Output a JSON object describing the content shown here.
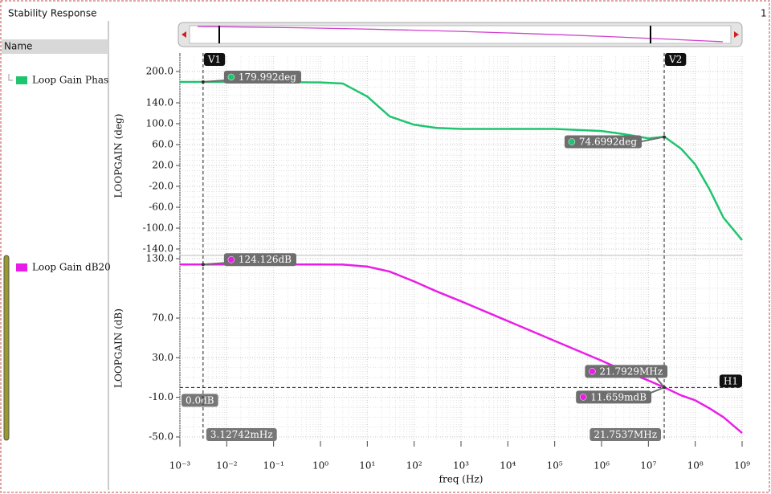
{
  "window": {
    "title": "Stability Response",
    "number": "1"
  },
  "browser": {
    "header": "Name"
  },
  "chart_data": [
    {
      "type": "line",
      "y_label": "LOOPGAIN (deg)",
      "log_x": true,
      "grid": true,
      "xlim": [
        0.001,
        1000000000
      ],
      "xticks": [
        0.001,
        0.01,
        0.1,
        1,
        10,
        100,
        1000,
        10000,
        100000,
        1000000,
        10000000,
        100000000,
        1000000000
      ],
      "ylim": [
        -140,
        200
      ],
      "yticks": [
        {
          "value": 200,
          "label": "200.0"
        },
        {
          "value": 140,
          "label": "140.0"
        },
        {
          "value": 100,
          "label": "100.0"
        },
        {
          "value": 60,
          "label": "60.0"
        },
        {
          "value": 20,
          "label": "20.0"
        },
        {
          "value": -20,
          "label": "-20.0"
        },
        {
          "value": -60,
          "label": "-60.0"
        },
        {
          "value": -100,
          "label": "-100.0"
        },
        {
          "value": -140,
          "label": "-140.0"
        }
      ],
      "x": [
        0.001,
        0.01,
        0.1,
        1,
        3,
        10,
        30,
        100,
        300,
        1000,
        10000,
        100000,
        1000000,
        3000000,
        10000000,
        22000000,
        50000000,
        100000000,
        200000000,
        400000000,
        1000000000
      ],
      "series": [
        {
          "name": "Loop Gain Phas",
          "color": "#1fc46f",
          "values": [
            180,
            180,
            180,
            179,
            177,
            152,
            114,
            98,
            92,
            90,
            90,
            90,
            86,
            80,
            72,
            75,
            52,
            22,
            -25,
            -80,
            -123
          ]
        }
      ],
      "points": [
        {
          "x": 0.00312742,
          "y": 179.992,
          "y_label": "179.992deg"
        },
        {
          "x": 21753700,
          "y": 74.6992,
          "y_label": "74.6992deg"
        }
      ]
    },
    {
      "type": "line",
      "y_label": "LOOPGAIN (dB)",
      "x_label": "freq (Hz)",
      "log_x": true,
      "grid": true,
      "xlim": [
        0.001,
        1000000000
      ],
      "xticks": [
        {
          "value": 0.001,
          "label": "10⁻³"
        },
        {
          "value": 0.01,
          "label": "10⁻²"
        },
        {
          "value": 0.1,
          "label": "10⁻¹"
        },
        {
          "value": 1,
          "label": "10⁰"
        },
        {
          "value": 10,
          "label": "10¹"
        },
        {
          "value": 100,
          "label": "10²"
        },
        {
          "value": 1000,
          "label": "10³"
        },
        {
          "value": 10000,
          "label": "10⁴"
        },
        {
          "value": 100000,
          "label": "10⁵"
        },
        {
          "value": 1000000,
          "label": "10⁶"
        },
        {
          "value": 10000000,
          "label": "10⁷"
        },
        {
          "value": 100000000,
          "label": "10⁸"
        },
        {
          "value": 1000000000,
          "label": "10⁹"
        }
      ],
      "ylim": [
        -50,
        130
      ],
      "yticks": [
        {
          "value": 130,
          "label": "130.0"
        },
        {
          "value": 70,
          "label": "70.0"
        },
        {
          "value": 30,
          "label": "30.0"
        },
        {
          "value": -10,
          "label": "-10.0"
        },
        {
          "value": -50,
          "label": "-50.0"
        }
      ],
      "x": [
        0.001,
        0.01,
        0.1,
        1,
        3,
        10,
        30,
        100,
        300,
        1000,
        10000,
        100000,
        1000000,
        3000000,
        10000000,
        22000000,
        50000000,
        100000000,
        200000000,
        400000000,
        1000000000
      ],
      "series": [
        {
          "name": "Loop Gain dB20",
          "color": "#e81ee8",
          "values": [
            124.1,
            124.1,
            124.1,
            124.1,
            124,
            122,
            117,
            107,
            97,
            87,
            67,
            47,
            27,
            17,
            7,
            0,
            -8,
            -13,
            -21,
            -30,
            -46
          ]
        }
      ],
      "points": [
        {
          "x": 0.00312742,
          "y": 124.126,
          "y_label": "124.126dB"
        },
        {
          "x": 21792900,
          "x_label": "21.7929MHz",
          "y": 0.011659,
          "y_label": "11.659mdB"
        }
      ],
      "vertical_markers": [
        {
          "name": "V1",
          "x": 0.00312742,
          "x_label": "3.12742mHz"
        },
        {
          "name": "V2",
          "x": 21753700,
          "x_label": "21.7537MHz"
        }
      ],
      "horizontal_markers": [
        {
          "name": "H1",
          "y": 0,
          "y_label": "0.0dB"
        }
      ]
    }
  ]
}
